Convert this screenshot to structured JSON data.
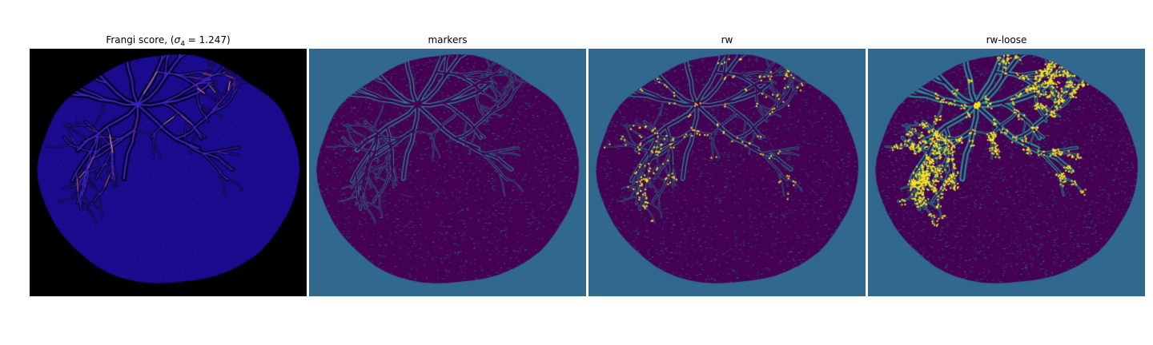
{
  "panels": [
    {
      "title_prefix": "Frangi score, (",
      "title_math_symbol": "σ",
      "title_math_subscript": "4",
      "title_math_rest": " = 1.247)",
      "background": "#000000",
      "body_color": "#1a0a8c",
      "vessel_color": "#0a0a3c",
      "highlight_colors": [
        "#c8507a",
        "#ff9a5a",
        "#7a1f8c"
      ]
    },
    {
      "title": "markers",
      "background": "#31688e",
      "body_color": "#440154",
      "vessel_color": "#21908d",
      "highlight_colors": []
    },
    {
      "title": "rw",
      "background": "#31688e",
      "body_color": "#440154",
      "vessel_color": "#21908d",
      "highlight_colors": [
        "#fde725"
      ]
    },
    {
      "title": "rw-loose",
      "background": "#31688e",
      "body_color": "#440154",
      "vessel_color": "#21908d",
      "highlight_colors": [
        "#fde725"
      ]
    }
  ]
}
